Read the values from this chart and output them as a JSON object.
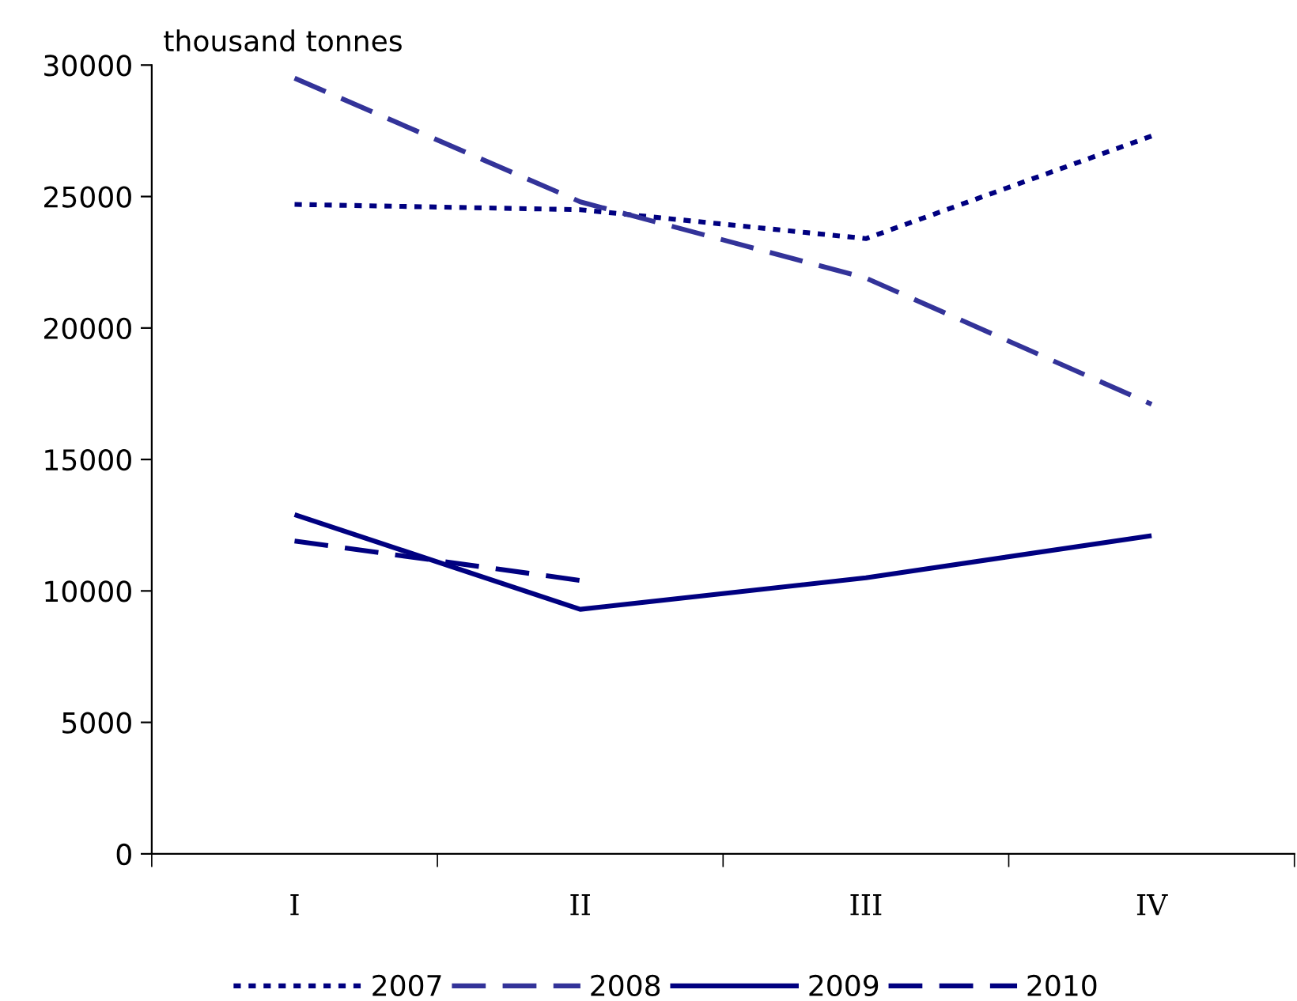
{
  "chart_data": {
    "type": "line",
    "ylabel": "thousand tonnes",
    "categories": [
      "I",
      "II",
      "III",
      "IV"
    ],
    "series": [
      {
        "name": "2007",
        "color": "#000080",
        "line_style": "dotted",
        "values": [
          24700,
          24500,
          23400,
          27300
        ]
      },
      {
        "name": "2008",
        "color": "#333399",
        "line_style": "dashed",
        "values": [
          29500,
          24800,
          21900,
          17100
        ]
      },
      {
        "name": "2009",
        "color": "#000080",
        "line_style": "solid",
        "values": [
          12900,
          9300,
          10500,
          12100
        ]
      },
      {
        "name": "2010",
        "color": "#000080",
        "line_style": "dashed",
        "values": [
          11900,
          10400,
          null,
          null
        ]
      }
    ],
    "ylim": [
      0,
      30000
    ],
    "yticks": [
      0,
      5000,
      10000,
      15000,
      20000,
      25000,
      30000
    ],
    "grid": false,
    "legend": "bottom",
    "marker": "none"
  }
}
